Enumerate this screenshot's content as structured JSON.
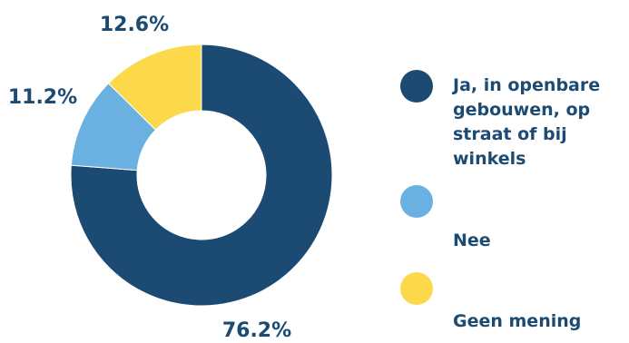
{
  "chart_data": {
    "type": "pie",
    "donut": true,
    "title": "",
    "series": [
      {
        "name": "Ja, in openbare gebouwen, op straat of bij winkels",
        "value": 76.2,
        "label": "76.2%",
        "color": "#1b4a73"
      },
      {
        "name": "Nee",
        "value": 11.2,
        "label": "11.2%",
        "color": "#6ab0e0"
      },
      {
        "name": "Geen mening",
        "value": 12.6,
        "label": "12.6%",
        "color": "#fcd94b"
      }
    ],
    "legend": {
      "placement": "right",
      "items": [
        {
          "lines": [
            "Ja, in openbare",
            "gebouwen, op",
            "straat of bij",
            "winkels"
          ]
        },
        {
          "lines": [
            "",
            "Nee"
          ]
        },
        {
          "lines": [
            "",
            "Geen mening"
          ]
        }
      ]
    }
  }
}
